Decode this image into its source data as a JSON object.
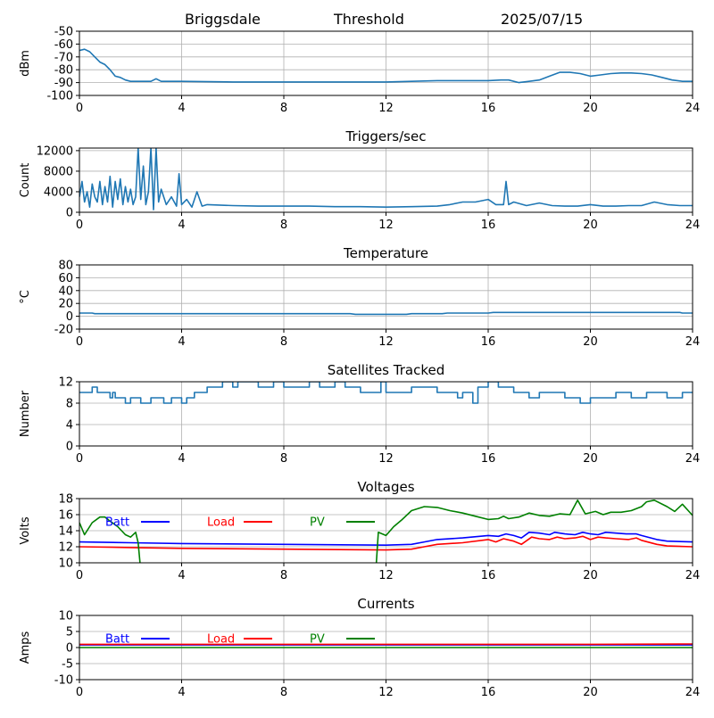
{
  "header": {
    "station": "Briggsdale",
    "mode": "Threshold",
    "date": "2025/07/15"
  },
  "colors": {
    "default_series": "#1f77b4",
    "batt": "#0000ff",
    "load": "#ff0000",
    "pv": "#008000"
  },
  "chart_data": [
    {
      "type": "line",
      "title": "",
      "ylabel": "dBm",
      "xlim": [
        0,
        24
      ],
      "ylim": [
        -100,
        -50
      ],
      "xticks": [
        0,
        4,
        8,
        12,
        16,
        20,
        24
      ],
      "yticks": [
        -100,
        -90,
        -80,
        -70,
        -60,
        -50
      ],
      "grid": true,
      "series": [
        {
          "color": "#1f77b4",
          "x": [
            0,
            0.2,
            0.4,
            0.6,
            0.8,
            1.0,
            1.2,
            1.4,
            1.6,
            1.8,
            2.0,
            2.4,
            2.8,
            3.0,
            3.2,
            4,
            6,
            8,
            10,
            12,
            14,
            16,
            16.5,
            16.8,
            17.2,
            17.6,
            18.0,
            18.4,
            18.8,
            19.2,
            19.6,
            20.0,
            20.4,
            20.8,
            21.2,
            21.6,
            22.0,
            22.4,
            22.8,
            23.2,
            23.6,
            24
          ],
          "values": [
            -65,
            -64,
            -66,
            -70,
            -74,
            -76,
            -80,
            -85,
            -86,
            -88,
            -89,
            -89,
            -89,
            -87,
            -89,
            -89,
            -89.5,
            -89.5,
            -89.5,
            -89.5,
            -88.5,
            -88.5,
            -88,
            -88,
            -90,
            -89,
            -88,
            -85,
            -82,
            -82,
            -83,
            -85,
            -84,
            -83,
            -82.5,
            -82.5,
            -83,
            -84,
            -86,
            -88,
            -89,
            -89
          ]
        }
      ]
    },
    {
      "type": "line",
      "title": "Triggers/sec",
      "ylabel": "Count",
      "xlim": [
        0,
        24
      ],
      "ylim": [
        0,
        12500
      ],
      "xticks": [
        0,
        4,
        8,
        12,
        16,
        20,
        24
      ],
      "yticks": [
        0,
        4000,
        8000,
        12000
      ],
      "grid": true,
      "series": [
        {
          "color": "#1f77b4",
          "x": [
            0,
            0.1,
            0.2,
            0.3,
            0.4,
            0.5,
            0.6,
            0.7,
            0.8,
            0.9,
            1.0,
            1.1,
            1.2,
            1.3,
            1.4,
            1.5,
            1.6,
            1.7,
            1.8,
            1.9,
            2.0,
            2.1,
            2.2,
            2.3,
            2.4,
            2.5,
            2.6,
            2.7,
            2.8,
            2.9,
            3.0,
            3.1,
            3.2,
            3.4,
            3.6,
            3.8,
            3.9,
            4.0,
            4.2,
            4.4,
            4.6,
            4.8,
            5,
            6,
            7,
            8,
            9,
            10,
            11,
            12,
            13,
            14,
            14.5,
            15,
            15.5,
            16,
            16.3,
            16.6,
            16.7,
            16.8,
            17,
            17.5,
            18,
            18.5,
            19,
            19.5,
            20,
            20.5,
            21,
            21.5,
            22,
            22.5,
            23,
            23.5,
            24
          ],
          "values": [
            3000,
            6000,
            2000,
            4000,
            1000,
            5500,
            3000,
            2000,
            6000,
            1500,
            5000,
            2000,
            7000,
            1000,
            6000,
            2500,
            6500,
            1500,
            5000,
            2000,
            4500,
            1500,
            3000,
            12500,
            2500,
            9000,
            1500,
            4000,
            12500,
            500,
            12500,
            2000,
            4500,
            1500,
            3000,
            1200,
            7500,
            1500,
            2500,
            1000,
            4000,
            1200,
            1500,
            1300,
            1200,
            1200,
            1200,
            1100,
            1100,
            1000,
            1100,
            1200,
            1500,
            2000,
            2000,
            2500,
            1500,
            1500,
            6000,
            1500,
            2000,
            1300,
            1800,
            1300,
            1200,
            1200,
            1500,
            1200,
            1200,
            1300,
            1300,
            2000,
            1500,
            1300,
            1300
          ]
        }
      ]
    },
    {
      "type": "line",
      "title": "Temperature",
      "ylabel": "°C",
      "xlim": [
        0,
        24
      ],
      "ylim": [
        -20,
        80
      ],
      "xticks": [
        0,
        4,
        8,
        12,
        16,
        20,
        24
      ],
      "yticks": [
        -20,
        0,
        20,
        40,
        60,
        80
      ],
      "grid": true,
      "series": [
        {
          "color": "#1f77b4",
          "x": [
            0,
            0.5,
            0.6,
            4,
            8,
            10.6,
            10.8,
            12,
            12.8,
            13,
            14.2,
            14.4,
            16,
            16.2,
            20,
            23.5,
            23.6,
            24
          ],
          "values": [
            5,
            5,
            4,
            4,
            4,
            4,
            3,
            3,
            3,
            4,
            4,
            5,
            5,
            6,
            6,
            6,
            5,
            5
          ]
        }
      ]
    },
    {
      "type": "line",
      "title": "Satellites Tracked",
      "ylabel": "Number",
      "xlim": [
        0,
        24
      ],
      "ylim": [
        0,
        12
      ],
      "xticks": [
        0,
        4,
        8,
        12,
        16,
        20,
        24
      ],
      "yticks": [
        0,
        4,
        8,
        12
      ],
      "grid": true,
      "series": [
        {
          "color": "#1f77b4",
          "x": [
            0,
            0.5,
            0.5,
            0.7,
            0.7,
            1.2,
            1.2,
            1.3,
            1.3,
            1.4,
            1.4,
            1.8,
            1.8,
            2.0,
            2.0,
            2.4,
            2.4,
            2.8,
            2.8,
            3.3,
            3.3,
            3.6,
            3.6,
            4.0,
            4.0,
            4.2,
            4.2,
            4.5,
            4.5,
            5.0,
            5.0,
            5.6,
            5.6,
            6.0,
            6.0,
            6.2,
            6.2,
            7.0,
            7.0,
            7.6,
            7.6,
            8.0,
            8.0,
            9.0,
            9.0,
            9.4,
            9.4,
            10.0,
            10.0,
            10.4,
            10.4,
            11.0,
            11.0,
            11.8,
            11.8,
            12.0,
            12.0,
            13.0,
            13.0,
            14.0,
            14.0,
            14.8,
            14.8,
            15.0,
            15.0,
            15.4,
            15.4,
            15.6,
            15.6,
            16.0,
            16.0,
            16.4,
            16.4,
            17.0,
            17.0,
            17.6,
            17.6,
            18.0,
            18.0,
            19.0,
            19.0,
            19.6,
            19.6,
            20.0,
            20.0,
            21.0,
            21.0,
            21.6,
            21.6,
            22.2,
            22.2,
            23.0,
            23.0,
            23.6,
            23.6,
            24
          ],
          "values": [
            10,
            10,
            11,
            11,
            10,
            10,
            9,
            9,
            10,
            10,
            9,
            9,
            8,
            8,
            9,
            9,
            8,
            8,
            9,
            9,
            8,
            8,
            9,
            9,
            8,
            8,
            9,
            9,
            10,
            10,
            11,
            11,
            12,
            12,
            11,
            11,
            12,
            12,
            11,
            11,
            12,
            12,
            11,
            11,
            12,
            12,
            11,
            11,
            12,
            12,
            11,
            11,
            10,
            10,
            12,
            12,
            10,
            10,
            11,
            11,
            10,
            10,
            9,
            9,
            10,
            10,
            8,
            8,
            11,
            11,
            12,
            12,
            11,
            11,
            10,
            10,
            9,
            9,
            10,
            10,
            9,
            9,
            8,
            8,
            9,
            9,
            10,
            10,
            9,
            9,
            10,
            10,
            9,
            9,
            10,
            10
          ]
        }
      ]
    },
    {
      "type": "line",
      "title": "Voltages",
      "ylabel": "Volts",
      "xlim": [
        0,
        24
      ],
      "ylim": [
        10,
        18
      ],
      "xticks": [
        0,
        4,
        8,
        12,
        16,
        20,
        24
      ],
      "yticks": [
        10,
        12,
        14,
        16,
        18
      ],
      "grid": true,
      "legend": [
        "Batt",
        "Load",
        "PV"
      ],
      "series": [
        {
          "name": "Batt",
          "color": "#0000ff",
          "x": [
            0,
            2,
            4,
            8,
            12,
            13,
            13.5,
            14,
            15,
            16,
            16.4,
            16.7,
            17,
            17.3,
            17.6,
            18,
            18.4,
            18.6,
            19,
            19.4,
            19.7,
            20,
            20.3,
            20.6,
            21,
            21.4,
            21.8,
            22,
            22.6,
            23,
            24
          ],
          "values": [
            12.6,
            12.5,
            12.4,
            12.3,
            12.2,
            12.3,
            12.6,
            12.9,
            13.1,
            13.4,
            13.3,
            13.6,
            13.4,
            13.1,
            13.8,
            13.7,
            13.5,
            13.8,
            13.6,
            13.5,
            13.8,
            13.6,
            13.5,
            13.8,
            13.7,
            13.6,
            13.6,
            13.4,
            12.9,
            12.7,
            12.6
          ]
        },
        {
          "name": "Load",
          "color": "#ff0000",
          "x": [
            0,
            2,
            4,
            8,
            12,
            13,
            13.5,
            14,
            15,
            16,
            16.3,
            16.6,
            17,
            17.3,
            17.7,
            18,
            18.4,
            18.7,
            19,
            19.4,
            19.7,
            20,
            20.3,
            20.6,
            21,
            21.5,
            21.8,
            22,
            22.6,
            23,
            24
          ],
          "values": [
            12.0,
            11.9,
            11.8,
            11.7,
            11.6,
            11.7,
            12.0,
            12.3,
            12.5,
            12.9,
            12.6,
            13.0,
            12.7,
            12.3,
            13.2,
            13.0,
            12.9,
            13.2,
            13.0,
            13.1,
            13.3,
            12.9,
            13.2,
            13.1,
            13.0,
            12.9,
            13.1,
            12.8,
            12.3,
            12.1,
            12.0
          ]
        },
        {
          "name": "PV",
          "color": "#008000",
          "x": [
            0,
            0.2,
            0.5,
            0.8,
            1.0,
            1.2,
            1.5,
            1.8,
            2.0,
            2.2,
            2.3,
            2.4,
            11.6,
            11.7,
            12.0,
            12.3,
            12.6,
            13.0,
            13.5,
            14.0,
            14.5,
            15.0,
            15.5,
            16.0,
            16.4,
            16.6,
            16.8,
            17.2,
            17.6,
            18.0,
            18.4,
            18.8,
            19.2,
            19.5,
            19.8,
            20.2,
            20.5,
            20.8,
            21.2,
            21.6,
            22.0,
            22.2,
            22.5,
            23.0,
            23.3,
            23.6,
            24
          ],
          "values": [
            15.0,
            13.5,
            15.0,
            15.7,
            15.7,
            15.2,
            14.5,
            13.5,
            13.2,
            13.8,
            12.5,
            9.0,
            9.0,
            13.8,
            13.4,
            14.5,
            15.3,
            16.5,
            17.0,
            16.9,
            16.5,
            16.2,
            15.8,
            15.4,
            15.5,
            15.8,
            15.5,
            15.7,
            16.2,
            15.9,
            15.8,
            16.1,
            16.0,
            17.8,
            16.1,
            16.4,
            16.0,
            16.3,
            16.3,
            16.5,
            17.0,
            17.6,
            17.8,
            17.0,
            16.4,
            17.3,
            15.9
          ]
        }
      ]
    },
    {
      "type": "line",
      "title": "Currents",
      "ylabel": "Amps",
      "xlim": [
        0,
        24
      ],
      "ylim": [
        -10,
        10
      ],
      "xticks": [
        0,
        4,
        8,
        12,
        16,
        20,
        24
      ],
      "yticks": [
        -10,
        -5,
        0,
        5,
        10
      ],
      "grid": true,
      "legend": [
        "Batt",
        "Load",
        "PV"
      ],
      "series": [
        {
          "name": "Batt",
          "color": "#0000ff",
          "x": [
            0,
            4,
            8,
            12,
            16,
            20,
            24
          ],
          "values": [
            0.8,
            0.8,
            0.8,
            0.8,
            0.8,
            0.8,
            0.8
          ]
        },
        {
          "name": "Load",
          "color": "#ff0000",
          "x": [
            0,
            4,
            8,
            12,
            16,
            20,
            24
          ],
          "values": [
            1.0,
            1.0,
            1.0,
            1.0,
            1.0,
            1.0,
            1.1
          ]
        },
        {
          "name": "PV",
          "color": "#008000",
          "x": [
            0,
            4,
            8,
            12,
            16,
            20,
            24
          ],
          "values": [
            0.0,
            0.0,
            0.0,
            0.0,
            0.0,
            0.0,
            0.0
          ]
        }
      ]
    }
  ]
}
